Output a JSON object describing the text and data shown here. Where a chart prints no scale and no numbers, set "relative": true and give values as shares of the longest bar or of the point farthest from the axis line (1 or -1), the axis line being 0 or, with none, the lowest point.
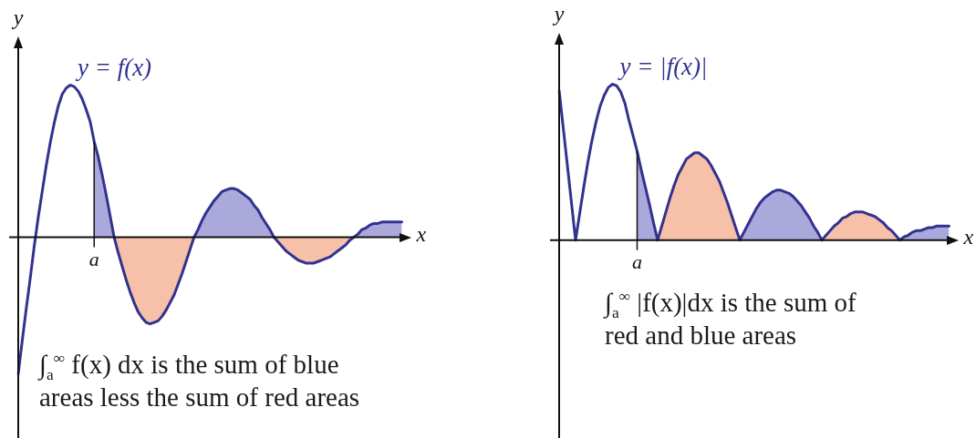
{
  "chart_data": [
    {
      "type": "line",
      "relative": true,
      "xlabel": "x",
      "ylabel": "y",
      "categories": [
        null,
        null,
        null,
        null,
        null,
        null,
        null,
        null,
        null,
        null,
        null,
        null,
        null,
        null,
        null,
        null,
        null,
        null,
        null,
        null,
        null,
        null,
        null,
        null,
        null,
        null,
        null,
        null,
        null,
        null,
        null,
        null,
        null,
        null,
        null,
        null,
        null,
        null,
        null,
        null,
        null,
        null,
        null,
        null,
        null,
        null,
        null,
        null,
        null,
        null,
        null,
        null,
        null,
        null,
        null,
        null,
        null,
        null,
        null,
        null,
        null,
        null,
        null,
        null,
        null,
        null,
        null,
        null,
        null,
        null,
        null,
        null,
        null,
        null,
        null,
        null,
        null,
        null,
        null,
        null,
        null,
        null,
        null,
        null,
        null,
        null,
        null,
        null,
        null,
        null,
        null,
        null,
        null,
        null,
        null,
        null,
        null
      ],
      "series": [
        {
          "name": "y = f(x)",
          "type": "line",
          "color": "#32328f",
          "values": [
            -0.9,
            -0.68,
            -0.47,
            -0.27,
            -0.06,
            0.13,
            0.3,
            0.47,
            0.62,
            0.75,
            0.86,
            0.94,
            0.98,
            1,
            0.99,
            0.96,
            0.91,
            0.84,
            0.76,
            0.63,
            0.53,
            0.41,
            0.28,
            0.14,
            0,
            -0.1,
            -0.19,
            -0.28,
            -0.36,
            -0.43,
            -0.49,
            -0.53,
            -0.56,
            -0.57,
            -0.56,
            -0.55,
            -0.52,
            -0.48,
            -0.43,
            -0.38,
            -0.31,
            -0.24,
            -0.16,
            -0.08,
            0,
            0.05,
            0.11,
            0.16,
            0.2,
            0.24,
            0.27,
            0.3,
            0.31,
            0.32,
            0.32,
            0.31,
            0.29,
            0.27,
            0.25,
            0.21,
            0.18,
            0.13,
            0.09,
            0.05,
            0,
            -0.03,
            -0.06,
            -0.09,
            -0.11,
            -0.13,
            -0.15,
            -0.16,
            -0.17,
            -0.17,
            -0.17,
            -0.16,
            -0.15,
            -0.14,
            -0.13,
            -0.11,
            -0.09,
            -0.07,
            -0.05,
            -0.02,
            0,
            0.02,
            0.05,
            0.06,
            0.08,
            0.09,
            0.09,
            0.1,
            0.1,
            0.1,
            0.1,
            0.1,
            0.1
          ]
        },
        {
          "type": "area",
          "color": "#aba9dc",
          "values": [
            null,
            null,
            null,
            null,
            null,
            null,
            null,
            null,
            null,
            null,
            null,
            null,
            null,
            null,
            null,
            null,
            null,
            null,
            null,
            0.63,
            0.53,
            0.41,
            0.28,
            0.14,
            0,
            null,
            null,
            null,
            null,
            null,
            null,
            null,
            null,
            null,
            null,
            null,
            null,
            null,
            null,
            null,
            null,
            null,
            null,
            null,
            0,
            0.05,
            0.11,
            0.16,
            0.2,
            0.24,
            0.27,
            0.3,
            0.31,
            0.32,
            0.32,
            0.31,
            0.29,
            0.27,
            0.25,
            0.21,
            0.18,
            0.13,
            0.09,
            0.05,
            0,
            null,
            null,
            null,
            null,
            null,
            null,
            null,
            null,
            null,
            null,
            null,
            null,
            null,
            null,
            null,
            null,
            null,
            null,
            null,
            0,
            0.02,
            0.05,
            0.06,
            0.08,
            0.09,
            0.09,
            0.1,
            0.1,
            0.1,
            0.1,
            0.1,
            0.1
          ]
        },
        {
          "type": "area",
          "color": "#f7c0a8",
          "values": [
            null,
            null,
            null,
            null,
            null,
            null,
            null,
            null,
            null,
            null,
            null,
            null,
            null,
            null,
            null,
            null,
            null,
            null,
            null,
            null,
            null,
            null,
            null,
            null,
            0,
            -0.1,
            -0.19,
            -0.28,
            -0.36,
            -0.43,
            -0.49,
            -0.53,
            -0.56,
            -0.57,
            -0.56,
            -0.55,
            -0.52,
            -0.48,
            -0.43,
            -0.38,
            -0.31,
            -0.24,
            -0.16,
            -0.08,
            0,
            null,
            null,
            null,
            null,
            null,
            null,
            null,
            null,
            null,
            null,
            null,
            null,
            null,
            null,
            null,
            null,
            null,
            null,
            null,
            0,
            -0.03,
            -0.06,
            -0.09,
            -0.11,
            -0.13,
            -0.15,
            -0.16,
            -0.17,
            -0.17,
            -0.17,
            -0.16,
            -0.15,
            -0.14,
            -0.13,
            -0.11,
            -0.09,
            -0.07,
            -0.05,
            -0.02,
            0,
            null,
            null,
            null,
            null,
            null,
            null,
            null,
            null,
            null,
            null,
            null,
            null
          ]
        }
      ],
      "annotations": [
        {
          "text": "a",
          "y": 0
        },
        "∫$_{a}$$^{∞}$ f(x) dx is the sum of blue areas less the sum of red areas"
      ]
    },
    {
      "type": "line",
      "relative": true,
      "xlabel": "x",
      "ylabel": "y",
      "categories": [
        null,
        null,
        null,
        null,
        null,
        null,
        null,
        null,
        null,
        null,
        null,
        null,
        null,
        null,
        null,
        null,
        null,
        null,
        null,
        null,
        null,
        null,
        null,
        null,
        null,
        null,
        null,
        null,
        null,
        null,
        null,
        null,
        null,
        null,
        null,
        null,
        null,
        null,
        null,
        null,
        null,
        null,
        null,
        null,
        null,
        null,
        null,
        null,
        null,
        null,
        null,
        null,
        null,
        null,
        null,
        null,
        null,
        null,
        null,
        null,
        null,
        null,
        null,
        null,
        null,
        null,
        null,
        null,
        null,
        null,
        null,
        null,
        null,
        null,
        null,
        null,
        null,
        null,
        null,
        null,
        null,
        null,
        null,
        null,
        null,
        null,
        null,
        null,
        null,
        null,
        null,
        null,
        null,
        null,
        null,
        null
      ],
      "series": [
        {
          "name": "y = |f(x)|",
          "type": "line",
          "color": "#32328f",
          "values": [
            0.96,
            0.72,
            0.48,
            0.24,
            0,
            0.17,
            0.34,
            0.5,
            0.64,
            0.76,
            0.86,
            0.93,
            0.98,
            1,
            0.99,
            0.95,
            0.88,
            0.77,
            0.67,
            0.57,
            0.45,
            0.34,
            0.23,
            0.11,
            0,
            0.09,
            0.18,
            0.27,
            0.35,
            0.42,
            0.47,
            0.52,
            0.54,
            0.56,
            0.56,
            0.54,
            0.52,
            0.48,
            0.43,
            0.38,
            0.31,
            0.24,
            0.16,
            0.08,
            0,
            0.05,
            0.1,
            0.15,
            0.2,
            0.24,
            0.27,
            0.29,
            0.31,
            0.32,
            0.32,
            0.31,
            0.3,
            0.28,
            0.25,
            0.22,
            0.18,
            0.14,
            0.09,
            0.05,
            0,
            0.03,
            0.06,
            0.09,
            0.11,
            0.14,
            0.15,
            0.17,
            0.18,
            0.18,
            0.18,
            0.17,
            0.16,
            0.15,
            0.13,
            0.11,
            0.08,
            0.06,
            0.03,
            0,
            0.02,
            0.03,
            0.05,
            0.06,
            0.06,
            0.07,
            0.08,
            0.08,
            0.09,
            0.09,
            0.09,
            0.09
          ]
        },
        {
          "type": "area",
          "color": "#aba9dc",
          "values": [
            null,
            null,
            null,
            null,
            null,
            null,
            null,
            null,
            null,
            null,
            null,
            null,
            null,
            null,
            null,
            null,
            null,
            null,
            null,
            0.57,
            0.45,
            0.34,
            0.23,
            0.11,
            0,
            null,
            null,
            null,
            null,
            null,
            null,
            null,
            null,
            null,
            null,
            null,
            null,
            null,
            null,
            null,
            null,
            null,
            null,
            null,
            0,
            0.05,
            0.1,
            0.15,
            0.2,
            0.24,
            0.27,
            0.29,
            0.31,
            0.32,
            0.32,
            0.31,
            0.3,
            0.28,
            0.25,
            0.22,
            0.18,
            0.14,
            0.09,
            0.05,
            0,
            null,
            null,
            null,
            null,
            null,
            null,
            null,
            null,
            null,
            null,
            null,
            null,
            null,
            null,
            null,
            null,
            null,
            null,
            0,
            0.02,
            0.03,
            0.05,
            0.06,
            0.06,
            0.07,
            0.08,
            0.08,
            0.09,
            0.09,
            0.09,
            0.09
          ]
        },
        {
          "type": "area",
          "color": "#f7c0a8",
          "values": [
            null,
            null,
            null,
            null,
            null,
            null,
            null,
            null,
            null,
            null,
            null,
            null,
            null,
            null,
            null,
            null,
            null,
            null,
            null,
            null,
            null,
            null,
            null,
            null,
            0,
            0.09,
            0.18,
            0.27,
            0.35,
            0.42,
            0.47,
            0.52,
            0.54,
            0.56,
            0.56,
            0.54,
            0.52,
            0.48,
            0.43,
            0.38,
            0.31,
            0.24,
            0.16,
            0.08,
            0,
            null,
            null,
            null,
            null,
            null,
            null,
            null,
            null,
            null,
            null,
            null,
            null,
            null,
            null,
            null,
            null,
            null,
            null,
            null,
            0,
            0.03,
            0.06,
            0.09,
            0.11,
            0.14,
            0.15,
            0.17,
            0.18,
            0.18,
            0.18,
            0.17,
            0.16,
            0.15,
            0.13,
            0.11,
            0.08,
            0.06,
            0.03,
            0,
            null,
            null,
            null,
            null,
            null,
            null,
            null,
            null,
            null,
            null,
            null,
            null
          ]
        }
      ],
      "annotations": [
        {
          "text": "a",
          "y": 0
        },
        "∫$_{a}$$^{∞}$ |f(x)|dx is the sum of red and blue areas"
      ]
    }
  ]
}
